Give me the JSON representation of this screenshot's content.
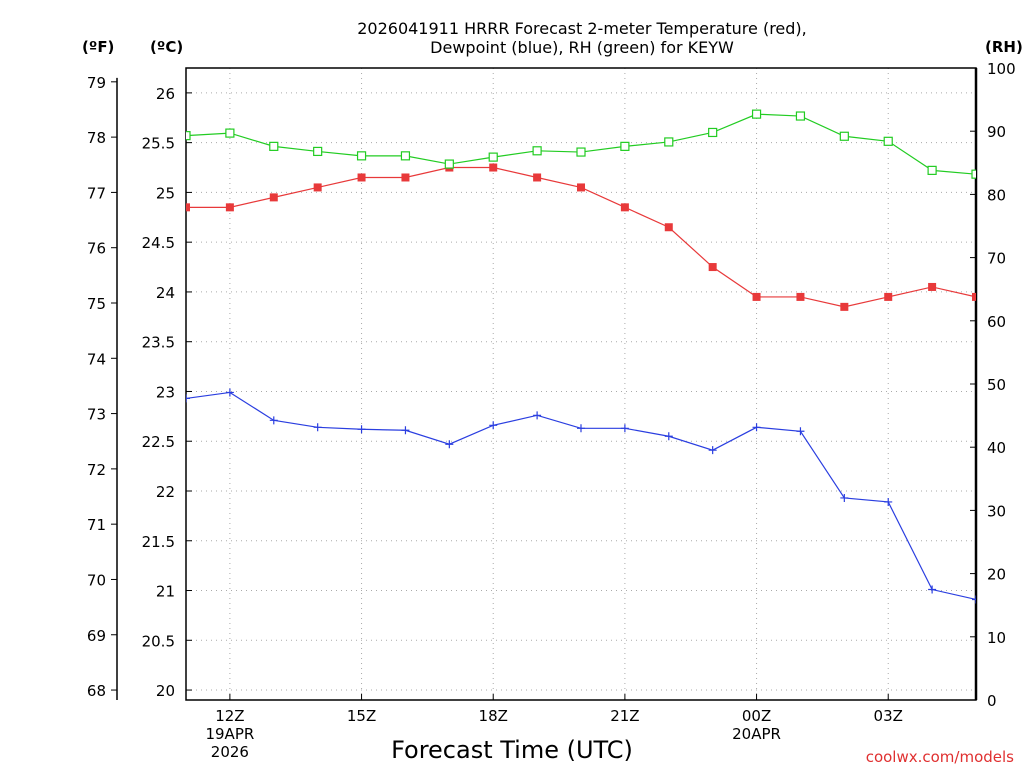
{
  "chart_data": {
    "type": "line",
    "title": [
      "2026041911 HRRR Forecast 2-meter Temperature (red),",
      "Dewpoint (blue), RH (green) for KEYW"
    ],
    "xlabel": "Forecast Time (UTC)",
    "watermark": "coolwx.com/models",
    "left_outer_axis": {
      "unit": "(ºF)",
      "ticks": [
        68,
        69,
        70,
        71,
        72,
        73,
        74,
        75,
        76,
        77,
        78,
        79
      ]
    },
    "left_axis": {
      "unit": "(ºC)",
      "ylim": [
        19.9,
        26.25
      ],
      "ticks": [
        20,
        20.5,
        21,
        21.5,
        22,
        22.5,
        23,
        23.5,
        24,
        24.5,
        25,
        25.5,
        26
      ],
      "tick_labels": [
        "20",
        "20.5",
        "21",
        "21.5",
        "22",
        "22.5",
        "23",
        "23.5",
        "24",
        "24.5",
        "25",
        "25.5",
        "26"
      ]
    },
    "right_axis": {
      "unit": "(RH)",
      "ylim": [
        0,
        100
      ],
      "ticks": [
        0,
        10,
        20,
        30,
        40,
        50,
        60,
        70,
        80,
        90,
        100
      ]
    },
    "x_hours": [
      11,
      12,
      13,
      14,
      15,
      16,
      17,
      18,
      19,
      20,
      21,
      22,
      23,
      24,
      25,
      26,
      27,
      28,
      29
    ],
    "x_range": [
      11,
      29
    ],
    "x_ticks": [
      {
        "hour": 12,
        "lines": [
          "12Z",
          "19APR",
          "2026"
        ]
      },
      {
        "hour": 15,
        "lines": [
          "15Z"
        ]
      },
      {
        "hour": 18,
        "lines": [
          "18Z"
        ]
      },
      {
        "hour": 21,
        "lines": [
          "21Z"
        ]
      },
      {
        "hour": 24,
        "lines": [
          "00Z",
          "20APR"
        ]
      },
      {
        "hour": 27,
        "lines": [
          "03Z"
        ]
      }
    ],
    "grid": true,
    "series": [
      {
        "name": "2-meter Temperature",
        "unit": "C",
        "axis": "left",
        "color": "#e8393a",
        "marker": "filled-square",
        "values": [
          24.85,
          24.85,
          24.95,
          25.05,
          25.15,
          25.15,
          25.25,
          25.25,
          25.15,
          25.05,
          24.85,
          24.65,
          24.25,
          23.95,
          23.95,
          23.85,
          23.95,
          24.05,
          23.95
        ]
      },
      {
        "name": "Dewpoint",
        "unit": "C",
        "axis": "left",
        "color": "#2a3ee0",
        "marker": "plus",
        "values": [
          22.93,
          22.99,
          22.71,
          22.64,
          22.62,
          22.61,
          22.47,
          22.66,
          22.76,
          22.63,
          22.63,
          22.55,
          22.41,
          22.64,
          22.6,
          21.93,
          21.89,
          21.01,
          20.91
        ]
      },
      {
        "name": "RH",
        "unit": "%",
        "axis": "right",
        "color": "#22cc22",
        "marker": "open-square",
        "values": [
          89.3,
          89.7,
          87.6,
          86.8,
          86.1,
          86.1,
          84.8,
          85.9,
          86.9,
          86.7,
          87.6,
          88.3,
          89.8,
          92.7,
          92.4,
          89.2,
          88.4,
          83.8,
          83.2
        ]
      }
    ]
  }
}
